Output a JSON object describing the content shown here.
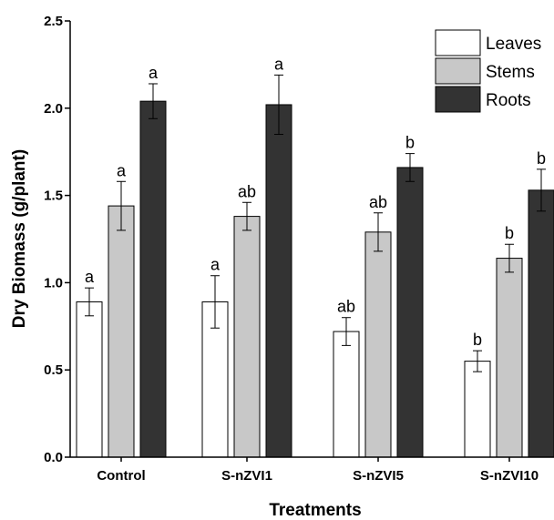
{
  "chart_data": {
    "type": "bar",
    "title": "",
    "xlabel": "Treatments",
    "ylabel": "Dry Biomass (g/plant)",
    "ylim": [
      0,
      2.5
    ],
    "yticks": [
      "0.0",
      "0.5",
      "1.0",
      "1.5",
      "2.0",
      "2.5"
    ],
    "categories": [
      "Control",
      "S-nZVI1",
      "S-nZVI5",
      "S-nZVI10"
    ],
    "legend_position": "top-right",
    "grid": false,
    "series": [
      {
        "name": "Leaves",
        "color": "#ffffff",
        "values": [
          0.89,
          0.89,
          0.72,
          0.55
        ],
        "errors": [
          0.08,
          0.15,
          0.08,
          0.06
        ],
        "labels": [
          "a",
          "a",
          "ab",
          "b"
        ]
      },
      {
        "name": "Stems",
        "color": "#c8c8c8",
        "values": [
          1.44,
          1.38,
          1.29,
          1.14
        ],
        "errors": [
          0.14,
          0.08,
          0.11,
          0.08
        ],
        "labels": [
          "a",
          "ab",
          "ab",
          "b"
        ]
      },
      {
        "name": "Roots",
        "color": "#333333",
        "values": [
          2.04,
          2.02,
          1.66,
          1.53
        ],
        "errors": [
          0.1,
          0.17,
          0.08,
          0.12
        ],
        "labels": [
          "a",
          "a",
          "b",
          "b"
        ]
      }
    ]
  }
}
